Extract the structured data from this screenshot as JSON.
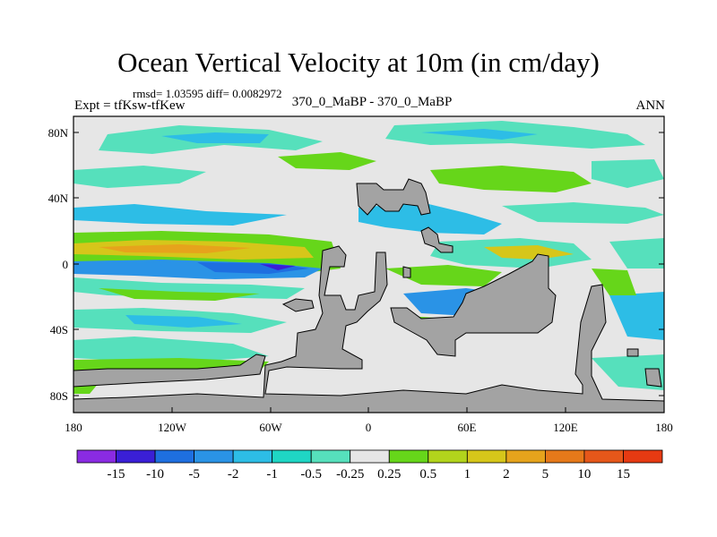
{
  "title": "Ocean Vertical Velocity at 10m (in cm/day)",
  "stats_label": "rmsd= 1.03595 diff= 0.0082972",
  "experiment_label": "Expt = tfKsw-tfKew",
  "case_label": "370_0_MaBP - 370_0_MaBP",
  "season_label": "ANN",
  "lat_ticks": [
    "80N",
    "40N",
    "0",
    "40S",
    "80S"
  ],
  "lon_ticks": [
    "180",
    "120W",
    "60W",
    "0",
    "60E",
    "120E",
    "180"
  ],
  "colorbar": {
    "labels": [
      "-15",
      "-10",
      "-5",
      "-2",
      "-1",
      "-0.5",
      "-0.25",
      "0.25",
      "0.5",
      "1",
      "2",
      "5",
      "10",
      "15"
    ],
    "colors": [
      "#8a2be2",
      "#3a1fd6",
      "#1e6fe0",
      "#2a93e6",
      "#2dbde6",
      "#1fd6c4",
      "#56e0bc",
      "#e6e6e6",
      "#66d61a",
      "#b2d41c",
      "#d6c61a",
      "#e6a31c",
      "#e6791a",
      "#e6571a",
      "#e63a12"
    ]
  },
  "land_color": "#a3a3a3"
}
